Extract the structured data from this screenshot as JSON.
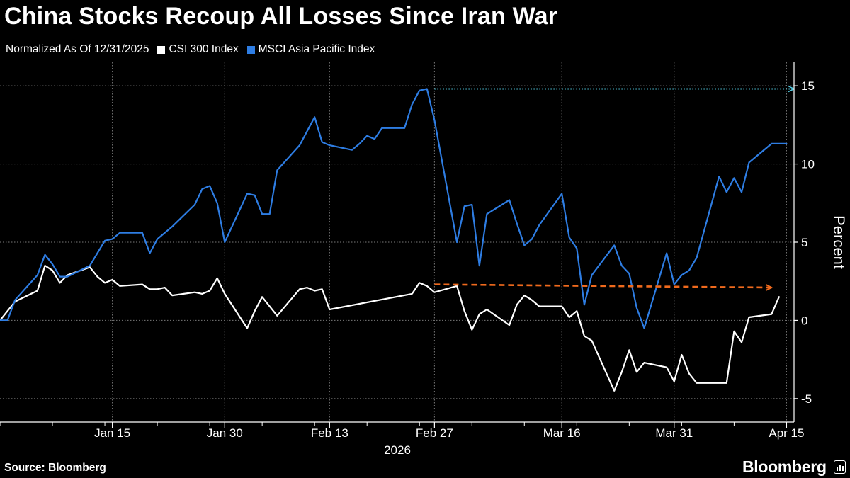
{
  "header": {
    "title": "China Stocks Recoup All Losses Since Iran War"
  },
  "legend": {
    "note": "Normalized As Of 12/31/2025",
    "items": [
      {
        "label": "CSI 300 Index",
        "color": "#ffffff"
      },
      {
        "label": "MSCI Asia Pacific Index",
        "color": "#2e7de3"
      }
    ]
  },
  "footer": {
    "source": "Source: Bloomberg",
    "brand": "Bloomberg"
  },
  "chart_data": {
    "type": "line",
    "title": "China Stocks Recoup All Losses Since Iran War",
    "subtitle": "Normalized As Of 12/31/2025",
    "xlabel": "2026",
    "ylabel": "Percent",
    "x_range": [
      "2025-12-31",
      "2026-04-16"
    ],
    "ylim": [
      -6.5,
      16.5
    ],
    "yticks": [
      -5,
      0,
      5,
      10,
      15
    ],
    "ytick_labels": [
      "-5",
      "0",
      "5",
      "10",
      "15"
    ],
    "xticks": [
      "2026-01-15",
      "2026-01-30",
      "2026-02-13",
      "2026-02-27",
      "2026-03-16",
      "2026-03-31",
      "2026-04-15"
    ],
    "xtick_labels": [
      "Jan 15",
      "Jan 30",
      "Feb 13",
      "Feb 27",
      "Mar 16",
      "Mar 31",
      "Apr 15"
    ],
    "year_label": "2026",
    "grid": true,
    "legend_position": "top-left",
    "series": [
      {
        "name": "CSI 300 Index",
        "color": "#ffffff",
        "x": [
          "2025-12-31",
          "2026-01-02",
          "2026-01-05",
          "2026-01-06",
          "2026-01-07",
          "2026-01-08",
          "2026-01-09",
          "2026-01-12",
          "2026-01-13",
          "2026-01-14",
          "2026-01-15",
          "2026-01-16",
          "2026-01-19",
          "2026-01-20",
          "2026-01-21",
          "2026-01-22",
          "2026-01-23",
          "2026-01-26",
          "2026-01-27",
          "2026-01-28",
          "2026-01-29",
          "2026-01-30",
          "2026-02-02",
          "2026-02-03",
          "2026-02-04",
          "2026-02-05",
          "2026-02-06",
          "2026-02-09",
          "2026-02-10",
          "2026-02-11",
          "2026-02-12",
          "2026-02-13",
          "2026-02-24",
          "2026-02-25",
          "2026-02-26",
          "2026-02-27",
          "2026-03-02",
          "2026-03-03",
          "2026-03-04",
          "2026-03-05",
          "2026-03-06",
          "2026-03-09",
          "2026-03-10",
          "2026-03-11",
          "2026-03-12",
          "2026-03-13",
          "2026-03-16",
          "2026-03-17",
          "2026-03-18",
          "2026-03-19",
          "2026-03-20",
          "2026-03-23",
          "2026-03-24",
          "2026-03-25",
          "2026-03-26",
          "2026-03-27",
          "2026-03-30",
          "2026-03-31",
          "2026-04-01",
          "2026-04-02",
          "2026-04-03",
          "2026-04-06",
          "2026-04-07",
          "2026-04-08",
          "2026-04-09",
          "2026-04-10",
          "2026-04-13",
          "2026-04-14"
        ],
        "values": [
          0.0,
          1.2,
          1.9,
          3.5,
          3.2,
          2.4,
          2.9,
          3.4,
          2.8,
          2.4,
          2.6,
          2.2,
          2.3,
          2.0,
          2.0,
          2.1,
          1.6,
          1.8,
          1.7,
          1.9,
          2.7,
          1.7,
          -0.5,
          0.6,
          1.5,
          0.9,
          0.3,
          2.0,
          2.1,
          1.9,
          2.0,
          0.7,
          1.7,
          2.4,
          2.2,
          1.8,
          2.2,
          0.6,
          -0.6,
          0.4,
          0.7,
          -0.3,
          1.0,
          1.6,
          1.3,
          0.9,
          0.9,
          0.2,
          0.6,
          -1.0,
          -1.3,
          -4.5,
          -3.3,
          -1.9,
          -3.3,
          -2.7,
          -3.0,
          -3.9,
          -2.2,
          -3.4,
          -4.0,
          -4.0,
          -4.0,
          -0.7,
          -1.4,
          0.2,
          0.4,
          1.5
        ]
      },
      {
        "name": "MSCI Asia Pacific Index",
        "color": "#2e7de3",
        "x": [
          "2025-12-31",
          "2026-01-01",
          "2026-01-02",
          "2026-01-05",
          "2026-01-06",
          "2026-01-07",
          "2026-01-08",
          "2026-01-09",
          "2026-01-12",
          "2026-01-13",
          "2026-01-14",
          "2026-01-15",
          "2026-01-16",
          "2026-01-19",
          "2026-01-20",
          "2026-01-21",
          "2026-01-22",
          "2026-01-23",
          "2026-01-26",
          "2026-01-27",
          "2026-01-28",
          "2026-01-29",
          "2026-01-30",
          "2026-02-02",
          "2026-02-03",
          "2026-02-04",
          "2026-02-05",
          "2026-02-06",
          "2026-02-09",
          "2026-02-10",
          "2026-02-11",
          "2026-02-12",
          "2026-02-13",
          "2026-02-16",
          "2026-02-17",
          "2026-02-18",
          "2026-02-19",
          "2026-02-20",
          "2026-02-23",
          "2026-02-24",
          "2026-02-25",
          "2026-02-26",
          "2026-02-27",
          "2026-03-02",
          "2026-03-03",
          "2026-03-04",
          "2026-03-05",
          "2026-03-06",
          "2026-03-09",
          "2026-03-10",
          "2026-03-11",
          "2026-03-12",
          "2026-03-13",
          "2026-03-16",
          "2026-03-17",
          "2026-03-18",
          "2026-03-19",
          "2026-03-20",
          "2026-03-23",
          "2026-03-24",
          "2026-03-25",
          "2026-03-26",
          "2026-03-27",
          "2026-03-30",
          "2026-03-31",
          "2026-04-01",
          "2026-04-02",
          "2026-04-03",
          "2026-04-06",
          "2026-04-07",
          "2026-04-08",
          "2026-04-09",
          "2026-04-10",
          "2026-04-13",
          "2026-04-14",
          "2026-04-15"
        ],
        "values": [
          0.0,
          0.0,
          1.3,
          2.9,
          4.2,
          3.6,
          2.8,
          2.8,
          3.5,
          4.3,
          5.1,
          5.2,
          5.6,
          5.6,
          4.3,
          5.2,
          5.6,
          6.0,
          7.4,
          8.4,
          8.6,
          7.5,
          5.0,
          8.1,
          8.0,
          6.8,
          6.8,
          9.6,
          11.2,
          12.1,
          13.0,
          11.4,
          11.2,
          10.9,
          11.3,
          11.8,
          11.6,
          12.3,
          12.3,
          13.8,
          14.7,
          14.8,
          12.8,
          5.0,
          7.3,
          7.4,
          3.5,
          6.8,
          7.7,
          6.2,
          4.8,
          5.2,
          6.1,
          8.1,
          5.3,
          4.6,
          1.0,
          2.9,
          4.8,
          3.5,
          3.0,
          0.8,
          -0.5,
          4.3,
          2.3,
          2.9,
          3.2,
          4.0,
          9.2,
          8.2,
          9.1,
          8.2,
          10.1,
          11.3,
          11.3,
          11.3
        ]
      }
    ],
    "annotations": [
      {
        "type": "arrow",
        "style": "dotted",
        "color": "#4fc3d9",
        "from": {
          "x": "2026-02-27",
          "y": 14.8
        },
        "to": {
          "x": "2026-04-16",
          "y": 14.8
        }
      },
      {
        "type": "arrow",
        "style": "dashed",
        "color": "#f06a1d",
        "from": {
          "x": "2026-02-27",
          "y": 2.3
        },
        "to": {
          "x": "2026-04-13",
          "y": 2.1
        }
      }
    ]
  }
}
